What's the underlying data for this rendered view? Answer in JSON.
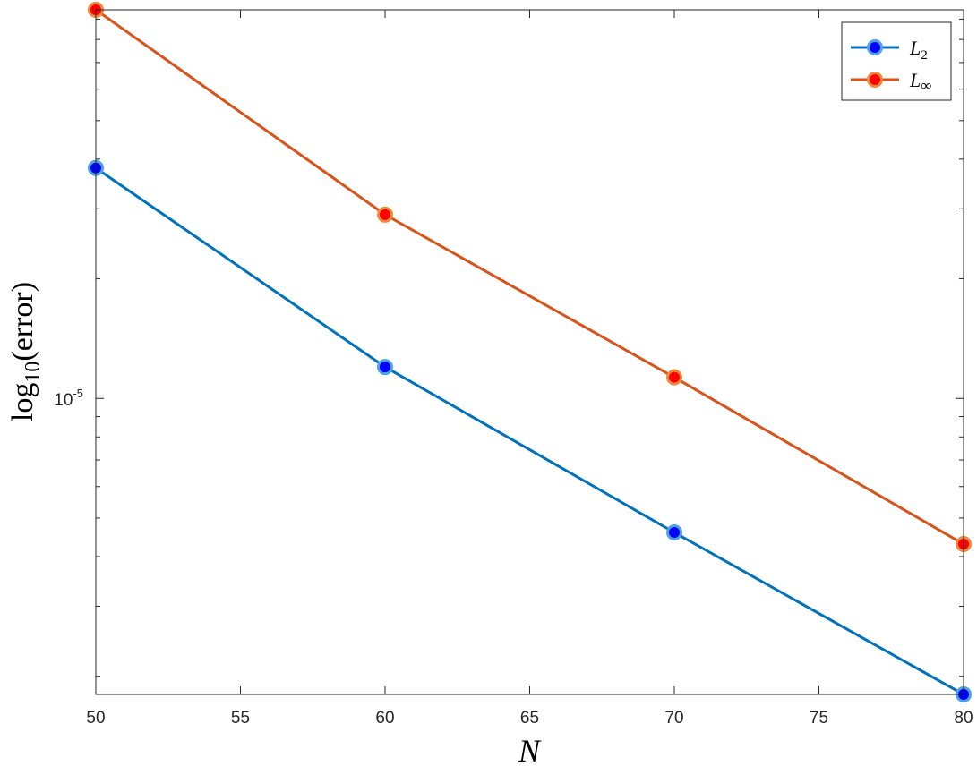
{
  "chart_data": {
    "type": "line",
    "xlabel": "N",
    "ylabel": "log",
    "ylabel_sub": "10",
    "ylabel_rest": "(error)",
    "yscale": "log",
    "xlim": [
      50,
      80
    ],
    "ylim": [
      1.8e-06,
      9.5e-05
    ],
    "x_ticks": [
      50,
      55,
      60,
      65,
      70,
      75,
      80
    ],
    "y_tick_label_base": "10",
    "y_tick_label_exp": "-5",
    "y_tick_value": 1e-05,
    "grid": false,
    "legend_position": "top-right",
    "series": [
      {
        "name": "L2",
        "name_base": "L",
        "name_sub": "2",
        "line_color": "#0072BD",
        "marker_fill": "#0000FF",
        "x": [
          50,
          60,
          70,
          80
        ],
        "y": [
          3.8e-05,
          1.2e-05,
          4.6e-06,
          1.8e-06
        ]
      },
      {
        "name": "L∞",
        "name_base": "L",
        "name_sub": "∞",
        "line_color": "#D95319",
        "marker_fill": "#FF0000",
        "x": [
          50,
          60,
          70,
          80
        ],
        "y": [
          9.5e-05,
          2.9e-05,
          1.13e-05,
          4.3e-06
        ]
      }
    ]
  }
}
